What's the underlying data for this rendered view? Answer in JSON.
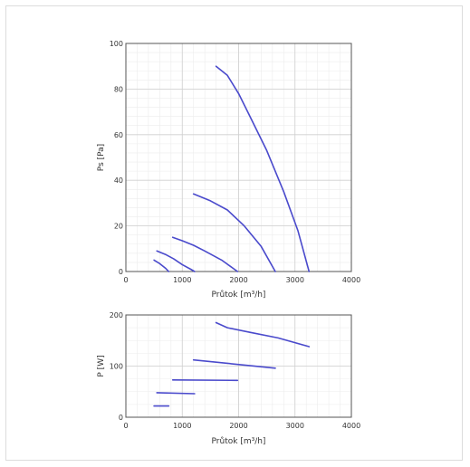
{
  "chart_data": [
    {
      "type": "line",
      "xlabel": "Průtok [m³/h]",
      "ylabel": "Ps [Pa]",
      "xlim": [
        0,
        4000
      ],
      "ylim": [
        0,
        100
      ],
      "x_ticks": [
        0,
        1000,
        2000,
        3000,
        4000
      ],
      "y_ticks": [
        0,
        20,
        40,
        60,
        80,
        100
      ],
      "grid": true,
      "line_color": "#4a4acc",
      "series": [
        {
          "x": [
            500,
            600,
            700,
            760
          ],
          "y": [
            5,
            3.5,
            1.5,
            0
          ]
        },
        {
          "x": [
            550,
            700,
            850,
            1000,
            1150,
            1220
          ],
          "y": [
            9,
            7.5,
            5.5,
            3,
            1,
            0
          ]
        },
        {
          "x": [
            830,
            1000,
            1200,
            1400,
            1700,
            1980
          ],
          "y": [
            15,
            13.5,
            11.5,
            9,
            5,
            0
          ]
        },
        {
          "x": [
            1200,
            1500,
            1800,
            2100,
            2400,
            2650
          ],
          "y": [
            34,
            31,
            27,
            20,
            11,
            0
          ]
        },
        {
          "x": [
            1600,
            1800,
            2000,
            2200,
            2500,
            2800,
            3050,
            3250
          ],
          "y": [
            90,
            86,
            78,
            68,
            53,
            35,
            18,
            0
          ]
        }
      ]
    },
    {
      "type": "line",
      "xlabel": "Průtok [m³/h]",
      "ylabel": "P [W]",
      "xlim": [
        0,
        4000
      ],
      "ylim": [
        0,
        200
      ],
      "x_ticks": [
        0,
        1000,
        2000,
        3000,
        4000
      ],
      "y_ticks": [
        0,
        100,
        200
      ],
      "grid": true,
      "line_color": "#4a4acc",
      "series": [
        {
          "x": [
            500,
            760
          ],
          "y": [
            22,
            22
          ]
        },
        {
          "x": [
            550,
            1220
          ],
          "y": [
            48,
            46
          ]
        },
        {
          "x": [
            830,
            1980
          ],
          "y": [
            73,
            72
          ]
        },
        {
          "x": [
            1200,
            2650
          ],
          "y": [
            112,
            96
          ]
        },
        {
          "x": [
            1600,
            1800,
            2200,
            2700,
            3250
          ],
          "y": [
            185,
            175,
            166,
            155,
            138
          ]
        }
      ]
    }
  ]
}
